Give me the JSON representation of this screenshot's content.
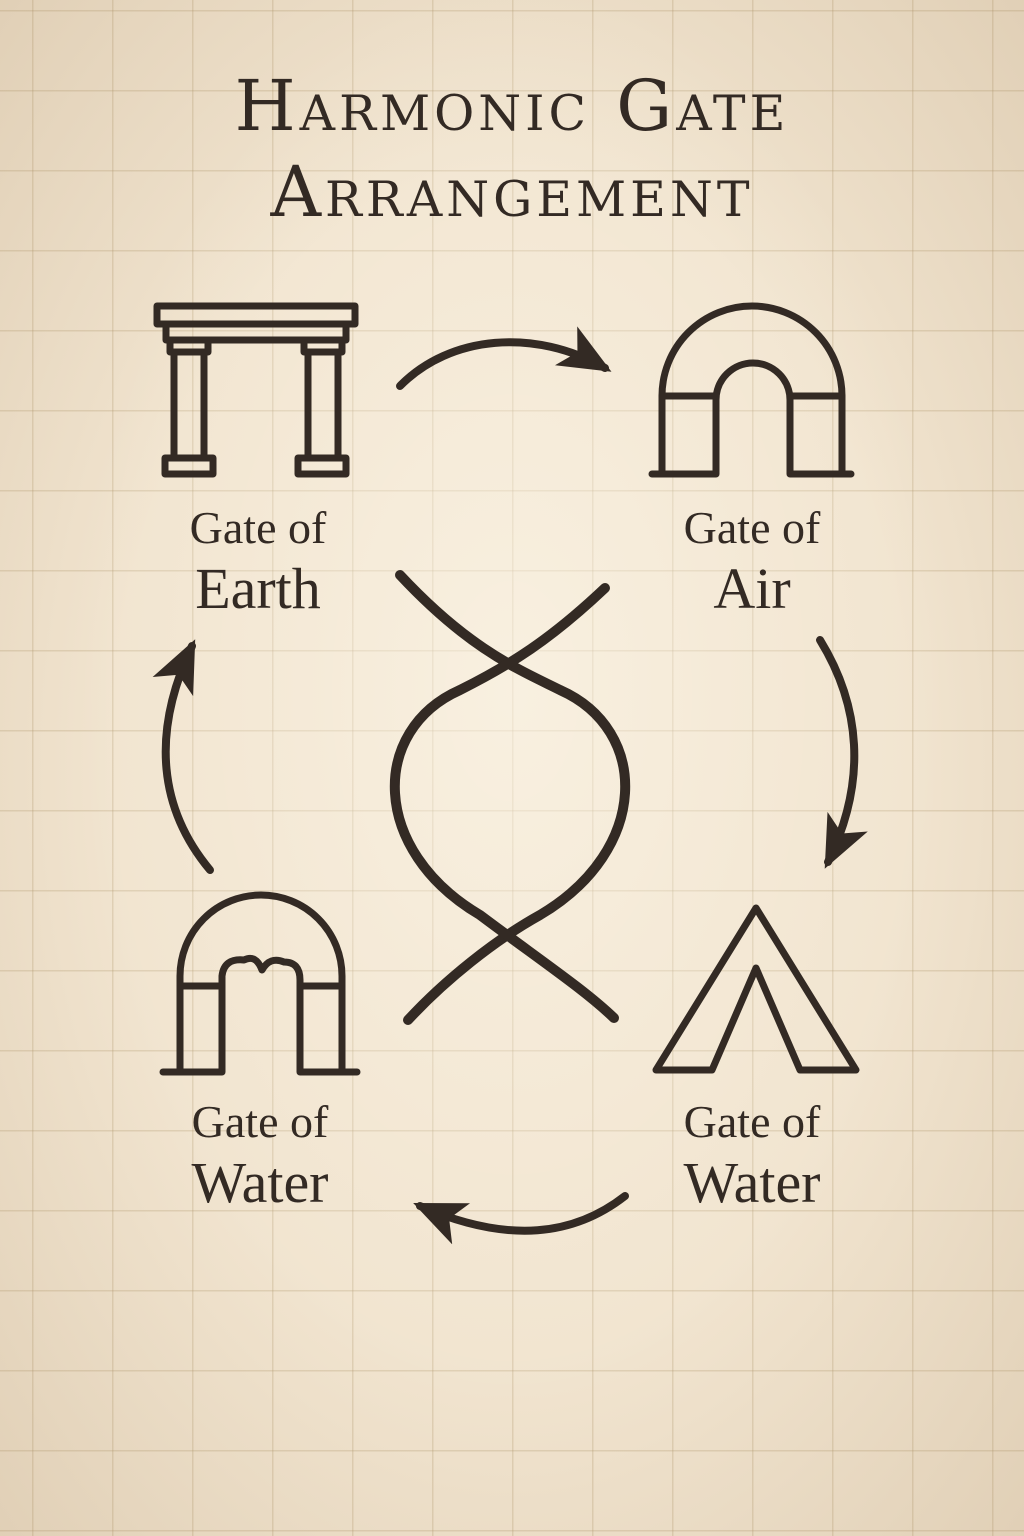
{
  "title": {
    "line1": "Harmonic Gate",
    "line2": "Arrangement"
  },
  "gates": {
    "top_left": {
      "line1": "Gate of",
      "line2": "Earth",
      "icon": "pillared-gate-icon"
    },
    "top_right": {
      "line1": "Gate of",
      "line2": "Air",
      "icon": "round-arch-icon"
    },
    "bottom_left": {
      "line1": "Gate of",
      "line2": "Water",
      "icon": "scalloped-arch-icon"
    },
    "bottom_right": {
      "line1": "Gate of",
      "line2": "Water",
      "icon": "triangle-gate-icon"
    }
  },
  "center_symbol": "interlaced-loop-icon",
  "flow": [
    "top_left",
    "top_right",
    "bottom_right",
    "bottom_left"
  ],
  "colors": {
    "ink": "#332a24",
    "paper": "#f1e4cf",
    "grid": "#c9b691"
  }
}
